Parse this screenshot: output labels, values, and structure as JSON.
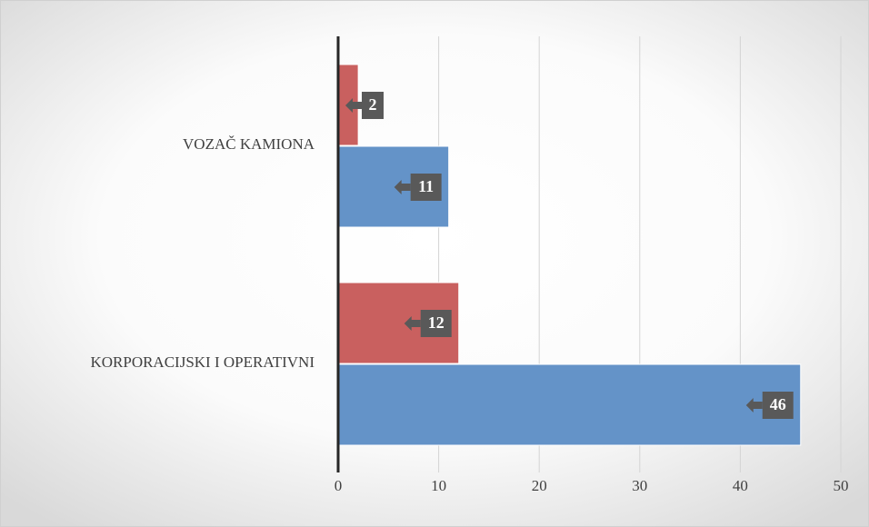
{
  "chart_data": {
    "type": "bar",
    "orientation": "horizontal",
    "categories": [
      "VOZAČ KAMIONA",
      "KORPORACIJSKI I OPERATIVNI"
    ],
    "series": [
      {
        "color": "#c9605f",
        "values": [
          2,
          12
        ]
      },
      {
        "color": "#6493c8",
        "values": [
          11,
          46
        ]
      }
    ],
    "xlim": [
      0,
      50
    ],
    "xticks": [
      0,
      10,
      20,
      30,
      40,
      50
    ],
    "grid": true
  }
}
